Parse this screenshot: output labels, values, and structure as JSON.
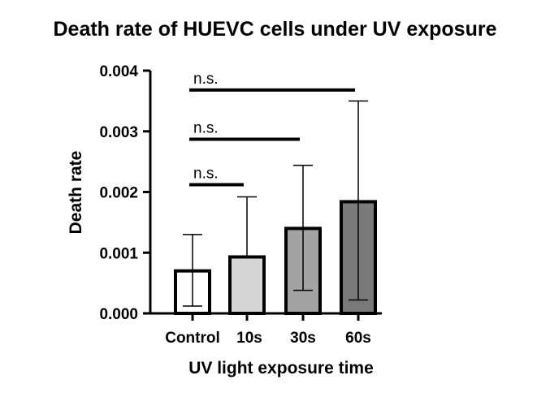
{
  "chart_data": {
    "type": "bar",
    "title": "Death rate of HUEVC cells under UV exposure",
    "xlabel": "UV light exposure time",
    "ylabel": "Death rate",
    "categories": [
      "Control",
      "10s",
      "30s",
      "60s"
    ],
    "values": [
      0.0007,
      0.00093,
      0.0014,
      0.00184
    ],
    "error_upper": [
      0.0013,
      0.00192,
      0.00244,
      0.0035
    ],
    "error_lower": [
      0.00012,
      0.00093,
      0.00038,
      0.00022
    ],
    "bar_colors": [
      "#ffffff",
      "#d6d6d6",
      "#a3a3a3",
      "#7a7a7a"
    ],
    "ylim": [
      0,
      0.004
    ],
    "yticks": [
      "0.000",
      "0.001",
      "0.002",
      "0.003",
      "0.004"
    ],
    "ytick_values": [
      0,
      0.001,
      0.002,
      0.003,
      0.004
    ],
    "significance": [
      {
        "from": "Control",
        "to": "10s",
        "label": "n.s.",
        "y": 0.00212
      },
      {
        "from": "Control",
        "to": "30s",
        "label": "n.s.",
        "y": 0.00287
      },
      {
        "from": "Control",
        "to": "60s",
        "label": "n.s.",
        "y": 0.00368
      }
    ],
    "grid": false,
    "legend": "none"
  }
}
